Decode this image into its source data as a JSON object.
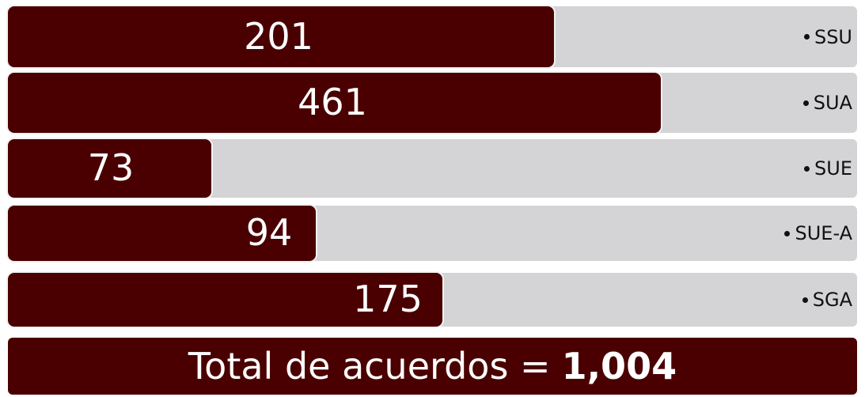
{
  "items": [
    {
      "value": "201",
      "label": "SSU"
    },
    {
      "value": "461",
      "label": "SUA"
    },
    {
      "value": "73",
      "label": "SUE"
    },
    {
      "value": "94",
      "label": "SUE-A"
    },
    {
      "value": "175",
      "label": "SGA"
    }
  ],
  "total": {
    "label": "Total de acuerdos =",
    "value": "1,004"
  }
}
